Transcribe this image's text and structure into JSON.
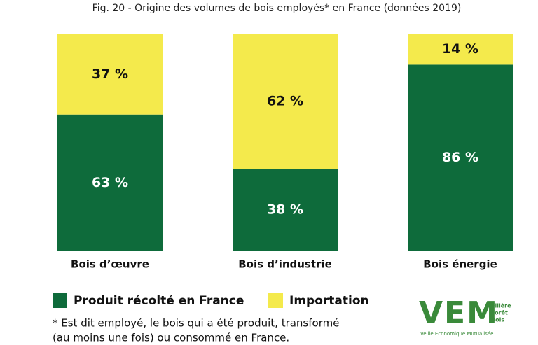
{
  "chart_data": {
    "type": "stacked-bar-100",
    "title": "Fig. 20 - Origine des volumes de bois employés* en France (données 2019)",
    "categories": [
      "Bois d’œuvre",
      "Bois d’industrie",
      "Bois énergie"
    ],
    "series": [
      {
        "name": "Produit récolté en France",
        "color": "#0e6b3b",
        "values": [
          63,
          38,
          86
        ],
        "value_labels": [
          "63 %",
          "38 %",
          "86 %"
        ]
      },
      {
        "name": "Importation",
        "color": "#f4ea4c",
        "values": [
          37,
          62,
          14
        ],
        "value_labels": [
          "37 %",
          "62 %",
          "14 %"
        ]
      }
    ],
    "footnote": [
      "* Est dit employé, le bois qui a été produit, transformé",
      "(au moins une fois) ou consommé en France."
    ]
  },
  "logo": {
    "mark": "VEM",
    "lines": [
      "Filière",
      "Forêt",
      "Bois"
    ],
    "caption": "Veille Economique Mutualisée"
  }
}
